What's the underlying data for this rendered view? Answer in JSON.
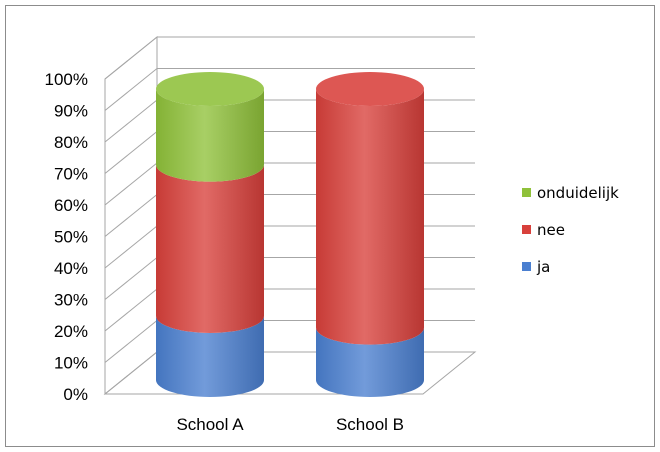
{
  "chart_data": {
    "type": "bar",
    "style": "3d-cylinder-stacked-100",
    "categories": [
      "School A",
      "School B"
    ],
    "series": [
      {
        "name": "ja",
        "color": "#4a7fd0",
        "values": [
          22,
          18
        ]
      },
      {
        "name": "nee",
        "color": "#d8403b",
        "values": [
          52,
          82
        ]
      },
      {
        "name": "onduidelijk",
        "color": "#8fc13a",
        "values": [
          26,
          0
        ]
      }
    ],
    "yticks": [
      "0%",
      "10%",
      "20%",
      "30%",
      "40%",
      "50%",
      "60%",
      "70%",
      "80%",
      "90%",
      "100%"
    ],
    "ylim": [
      0,
      100
    ],
    "grid": true,
    "legend_position": "right"
  }
}
